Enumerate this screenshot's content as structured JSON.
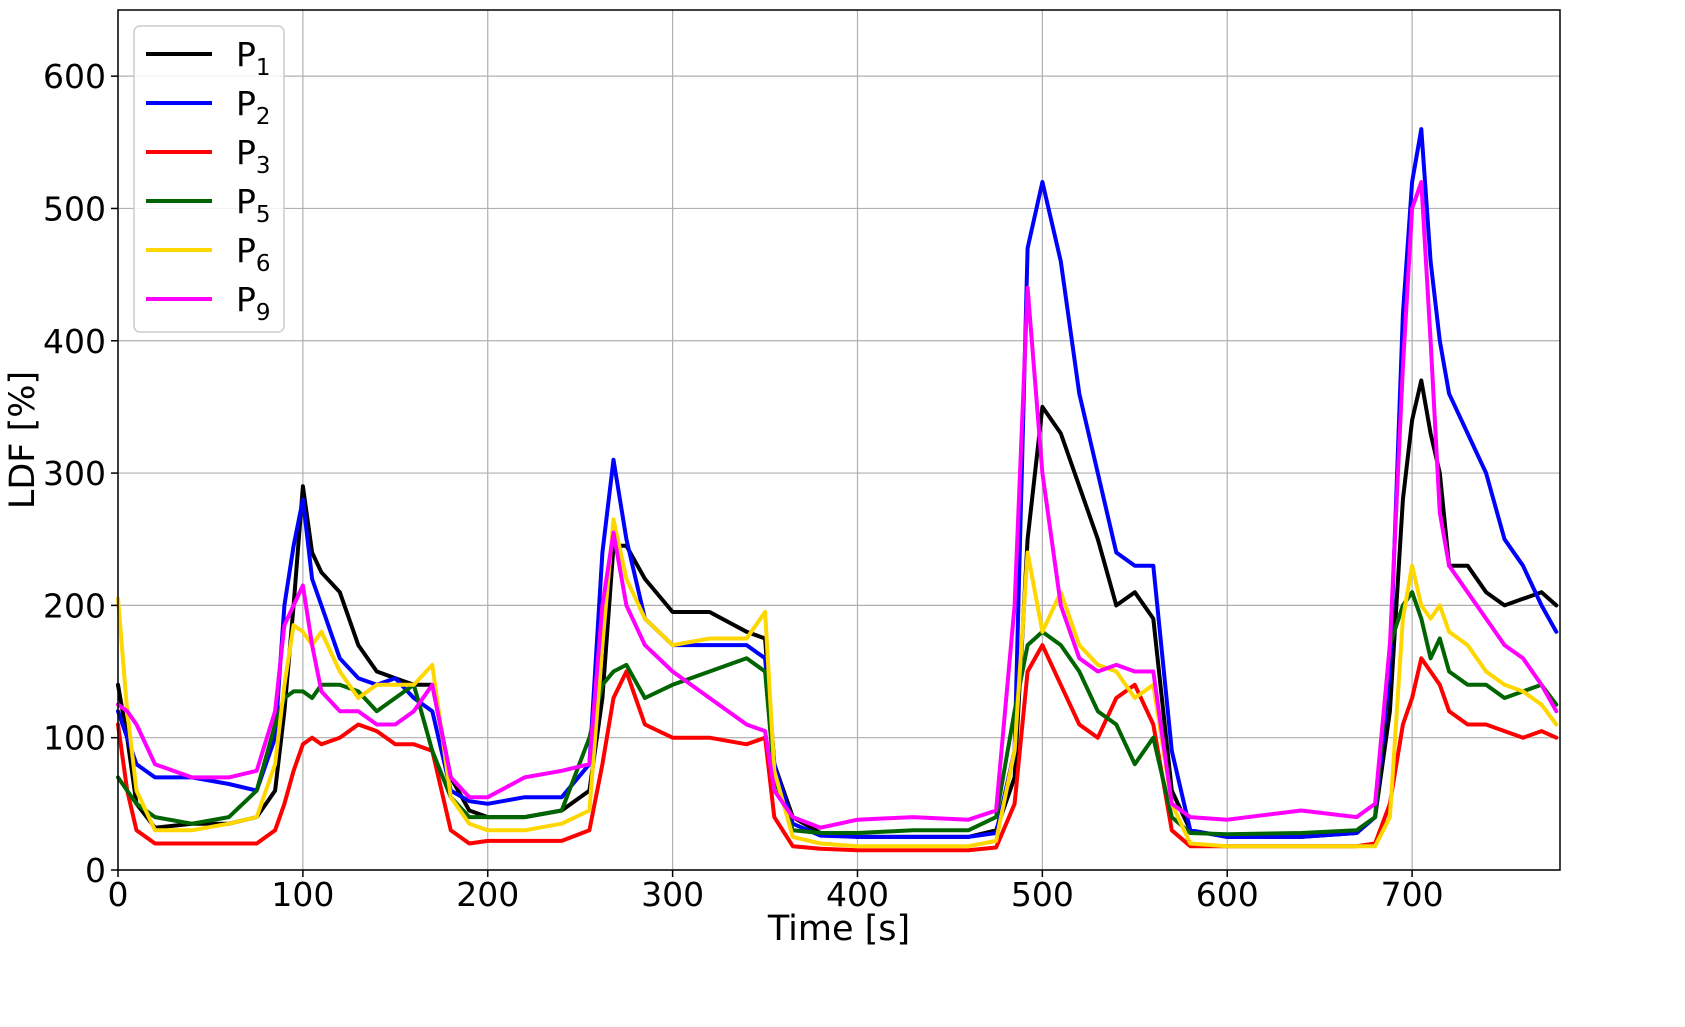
{
  "chart_data": {
    "type": "line",
    "title": "",
    "xlabel": "Time [s]",
    "ylabel": "LDF [%]",
    "xlim": [
      0,
      780
    ],
    "ylim": [
      0,
      650
    ],
    "xticks": [
      0,
      100,
      200,
      300,
      400,
      500,
      600,
      700
    ],
    "yticks": [
      0,
      100,
      200,
      300,
      400,
      500,
      600
    ],
    "xtick_labels": [
      "0",
      "100",
      "200",
      "300",
      "400",
      "500",
      "600",
      "700"
    ],
    "ytick_labels": [
      "0",
      "100",
      "200",
      "300",
      "400",
      "500",
      "600"
    ],
    "grid": true,
    "legend_position": "top-left",
    "series": [
      {
        "name": "P",
        "subscript": "1",
        "color": "#000000",
        "x": [
          0,
          5,
          10,
          20,
          40,
          60,
          75,
          85,
          90,
          95,
          100,
          105,
          110,
          120,
          130,
          140,
          150,
          160,
          170,
          180,
          190,
          200,
          220,
          240,
          255,
          262,
          268,
          275,
          285,
          300,
          320,
          340,
          350,
          355,
          365,
          380,
          400,
          430,
          460,
          475,
          485,
          492,
          500,
          510,
          520,
          530,
          540,
          550,
          560,
          570,
          580,
          600,
          640,
          670,
          680,
          688,
          695,
          700,
          705,
          710,
          715,
          720,
          730,
          740,
          750,
          760,
          770,
          778
        ],
        "values": [
          140,
          100,
          50,
          32,
          35,
          35,
          40,
          60,
          120,
          200,
          290,
          240,
          225,
          210,
          170,
          150,
          145,
          140,
          140,
          70,
          45,
          40,
          40,
          45,
          60,
          130,
          245,
          245,
          220,
          195,
          195,
          180,
          175,
          80,
          40,
          28,
          25,
          25,
          25,
          30,
          70,
          250,
          350,
          330,
          290,
          250,
          200,
          210,
          190,
          60,
          30,
          25,
          25,
          28,
          40,
          120,
          280,
          340,
          370,
          330,
          300,
          230,
          230,
          210,
          200,
          205,
          210,
          200
        ]
      },
      {
        "name": "P",
        "subscript": "2",
        "color": "#0000ff",
        "x": [
          0,
          5,
          10,
          20,
          40,
          60,
          75,
          85,
          90,
          95,
          100,
          105,
          110,
          120,
          130,
          140,
          150,
          160,
          170,
          180,
          190,
          200,
          220,
          240,
          255,
          262,
          268,
          275,
          285,
          300,
          320,
          340,
          350,
          355,
          365,
          380,
          400,
          430,
          460,
          475,
          485,
          492,
          500,
          510,
          520,
          530,
          540,
          550,
          560,
          570,
          580,
          600,
          640,
          670,
          680,
          688,
          695,
          700,
          705,
          710,
          715,
          720,
          730,
          740,
          750,
          760,
          770,
          778
        ],
        "values": [
          120,
          100,
          80,
          70,
          70,
          65,
          60,
          100,
          200,
          245,
          280,
          220,
          200,
          160,
          145,
          140,
          145,
          130,
          120,
          60,
          52,
          50,
          55,
          55,
          80,
          240,
          310,
          250,
          190,
          170,
          170,
          170,
          160,
          80,
          35,
          26,
          25,
          25,
          25,
          28,
          90,
          470,
          520,
          460,
          360,
          300,
          240,
          230,
          230,
          90,
          30,
          25,
          25,
          28,
          40,
          150,
          420,
          520,
          560,
          460,
          400,
          360,
          330,
          300,
          250,
          230,
          200,
          180
        ]
      },
      {
        "name": "P",
        "subscript": "3",
        "color": "#ff0000",
        "x": [
          0,
          5,
          10,
          20,
          40,
          60,
          75,
          85,
          90,
          95,
          100,
          105,
          110,
          120,
          130,
          140,
          150,
          160,
          170,
          180,
          190,
          200,
          220,
          240,
          255,
          262,
          268,
          275,
          285,
          300,
          320,
          340,
          350,
          355,
          365,
          380,
          400,
          430,
          460,
          475,
          485,
          492,
          500,
          510,
          520,
          530,
          540,
          550,
          560,
          570,
          580,
          600,
          640,
          670,
          680,
          688,
          695,
          700,
          705,
          710,
          715,
          720,
          730,
          740,
          750,
          760,
          770,
          778
        ],
        "values": [
          110,
          60,
          30,
          20,
          20,
          20,
          20,
          30,
          50,
          75,
          95,
          100,
          95,
          100,
          110,
          105,
          95,
          95,
          90,
          30,
          20,
          22,
          22,
          22,
          30,
          80,
          130,
          150,
          110,
          100,
          100,
          95,
          100,
          40,
          18,
          16,
          15,
          15,
          15,
          17,
          50,
          150,
          170,
          140,
          110,
          100,
          130,
          140,
          110,
          30,
          18,
          18,
          18,
          18,
          20,
          50,
          110,
          130,
          160,
          150,
          140,
          120,
          110,
          110,
          105,
          100,
          105,
          100
        ]
      },
      {
        "name": "P",
        "subscript": "5",
        "color": "#006400",
        "x": [
          0,
          5,
          10,
          20,
          40,
          60,
          75,
          85,
          90,
          95,
          100,
          105,
          110,
          120,
          130,
          140,
          150,
          160,
          170,
          180,
          190,
          200,
          220,
          240,
          255,
          262,
          268,
          275,
          285,
          300,
          320,
          340,
          350,
          355,
          365,
          380,
          400,
          430,
          460,
          475,
          485,
          492,
          500,
          510,
          520,
          530,
          540,
          550,
          560,
          570,
          580,
          600,
          640,
          670,
          680,
          688,
          695,
          700,
          705,
          710,
          715,
          720,
          730,
          740,
          750,
          760,
          770,
          778
        ],
        "values": [
          70,
          60,
          50,
          40,
          35,
          40,
          60,
          110,
          130,
          135,
          135,
          130,
          140,
          140,
          135,
          120,
          130,
          140,
          90,
          55,
          40,
          40,
          40,
          45,
          100,
          140,
          150,
          155,
          130,
          140,
          150,
          160,
          150,
          70,
          30,
          28,
          28,
          30,
          30,
          40,
          120,
          170,
          180,
          170,
          150,
          120,
          110,
          80,
          100,
          40,
          28,
          27,
          28,
          30,
          40,
          170,
          200,
          210,
          190,
          160,
          175,
          150,
          140,
          140,
          130,
          135,
          140,
          125
        ]
      },
      {
        "name": "P",
        "subscript": "6",
        "color": "#ffd700",
        "x": [
          0,
          5,
          10,
          20,
          40,
          60,
          75,
          85,
          90,
          95,
          100,
          105,
          110,
          120,
          130,
          140,
          150,
          160,
          170,
          180,
          190,
          200,
          220,
          240,
          255,
          262,
          268,
          275,
          285,
          300,
          320,
          340,
          350,
          355,
          365,
          380,
          400,
          430,
          460,
          475,
          485,
          492,
          500,
          510,
          520,
          530,
          540,
          550,
          560,
          570,
          580,
          600,
          640,
          670,
          680,
          688,
          695,
          700,
          705,
          710,
          715,
          720,
          730,
          740,
          750,
          760,
          770,
          778
        ],
        "values": [
          205,
          120,
          60,
          30,
          30,
          35,
          40,
          80,
          140,
          185,
          180,
          170,
          180,
          150,
          130,
          140,
          140,
          140,
          155,
          55,
          35,
          30,
          30,
          35,
          45,
          170,
          265,
          220,
          190,
          170,
          175,
          175,
          195,
          75,
          25,
          20,
          18,
          18,
          18,
          22,
          90,
          240,
          180,
          210,
          170,
          155,
          150,
          130,
          140,
          50,
          20,
          18,
          18,
          18,
          18,
          40,
          190,
          230,
          200,
          190,
          200,
          180,
          170,
          150,
          140,
          135,
          125,
          110
        ]
      },
      {
        "name": "P",
        "subscript": "9",
        "color": "#ff00ff",
        "x": [
          0,
          5,
          10,
          20,
          40,
          60,
          75,
          85,
          90,
          95,
          100,
          105,
          110,
          120,
          130,
          140,
          150,
          160,
          170,
          180,
          190,
          200,
          220,
          240,
          255,
          262,
          268,
          275,
          285,
          300,
          320,
          340,
          350,
          355,
          365,
          380,
          400,
          430,
          460,
          475,
          485,
          492,
          500,
          510,
          520,
          530,
          540,
          550,
          560,
          570,
          580,
          600,
          640,
          670,
          680,
          688,
          695,
          700,
          705,
          710,
          715,
          720,
          730,
          740,
          750,
          760,
          770,
          778
        ],
        "values": [
          125,
          120,
          110,
          80,
          70,
          70,
          75,
          120,
          185,
          200,
          215,
          170,
          135,
          120,
          120,
          110,
          110,
          120,
          140,
          70,
          55,
          55,
          70,
          75,
          80,
          200,
          255,
          200,
          170,
          150,
          130,
          110,
          105,
          60,
          40,
          32,
          38,
          40,
          38,
          45,
          200,
          440,
          300,
          200,
          160,
          150,
          155,
          150,
          150,
          50,
          40,
          38,
          45,
          40,
          50,
          170,
          380,
          500,
          520,
          400,
          270,
          230,
          210,
          190,
          170,
          160,
          140,
          120
        ]
      }
    ]
  }
}
